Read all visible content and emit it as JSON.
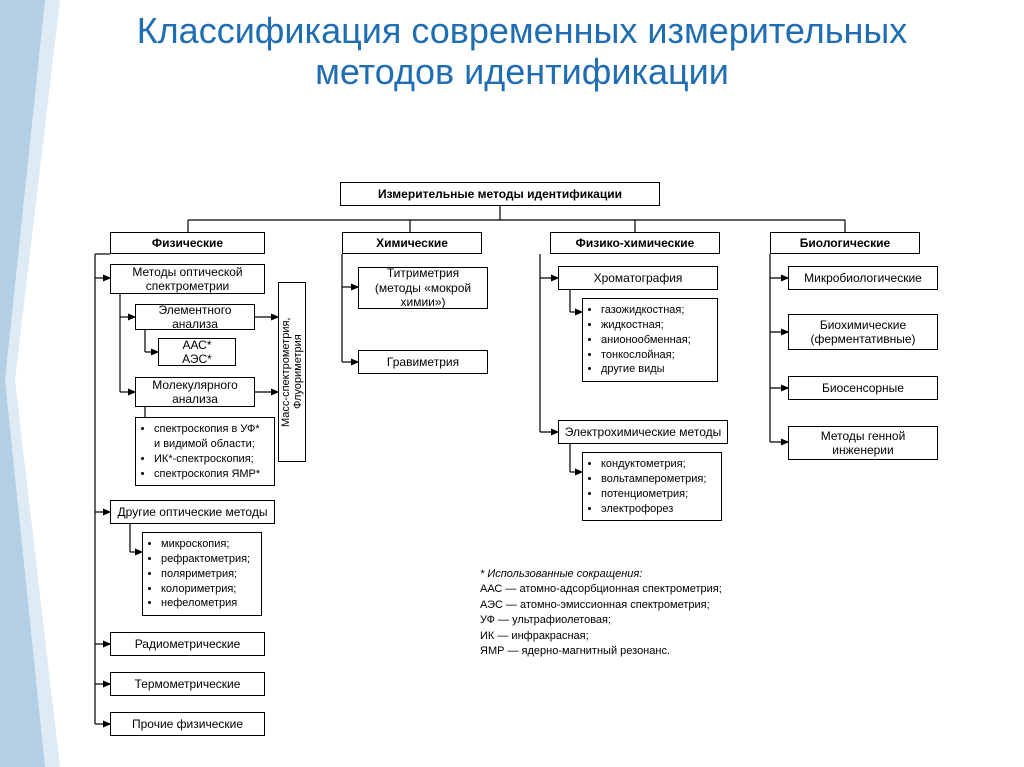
{
  "title": "Классификация современных измерительных методов идентификации",
  "colors": {
    "title": "#1f6db2",
    "decoration": "#2a7ab8",
    "border": "#000000",
    "background": "#ffffff"
  },
  "diagram": {
    "root": "Измерительные методы идентификации",
    "columns": {
      "physical": {
        "header": "Физические",
        "optical_header": "Методы оптической спектрометрии",
        "elemental": "Элементного анализа",
        "aas_aes": "ААС*\nАЭС*",
        "molecular": "Молекулярного анализа",
        "spectro_list": [
          "спектроскопия в УФ* и видимой области;",
          "ИК*-спектроскопия;",
          "спектроскопия ЯМР*"
        ],
        "mass_spec": "Масс-спектрометрия,\nФлуориметрия",
        "other_optical": "Другие оптические методы",
        "other_list": [
          "микроскопия;",
          "рефрактометрия;",
          "поляриметрия;",
          "колориметрия;",
          "нефелометрия"
        ],
        "radio": "Радиометрические",
        "thermo": "Термометрические",
        "other_phys": "Прочие физические"
      },
      "chemical": {
        "header": "Химические",
        "titr": "Титриметрия (методы «мокрой химии»)",
        "grav": "Гравиметрия"
      },
      "physchem": {
        "header": "Физико-химические",
        "chrom": "Хроматография",
        "chrom_list": [
          "газожидкостная;",
          "жидкостная;",
          "анионообменная;",
          "тонкослойная;",
          "другие виды"
        ],
        "electro": "Электрохимические методы",
        "electro_list": [
          "кондуктометрия;",
          "вольтамперометрия;",
          "потенциометрия;",
          "электрофорез"
        ]
      },
      "bio": {
        "header": "Биологические",
        "micro": "Микробиологические",
        "biochem": "Биохимические (ферментативные)",
        "biosensor": "Биосенсорные",
        "gene": "Методы генной инженерии"
      }
    }
  },
  "footnote": {
    "header": "* Использованные сокращения:",
    "lines": [
      "ААС — атомно-адсорбционная спектрометрия;",
      "АЭС — атомно-эмиссионная спектрометрия;",
      "УФ — ультрафиолетовая;",
      "ИК — инфракрасная;",
      "ЯМР — ядерно-магнитный резонанс."
    ]
  }
}
